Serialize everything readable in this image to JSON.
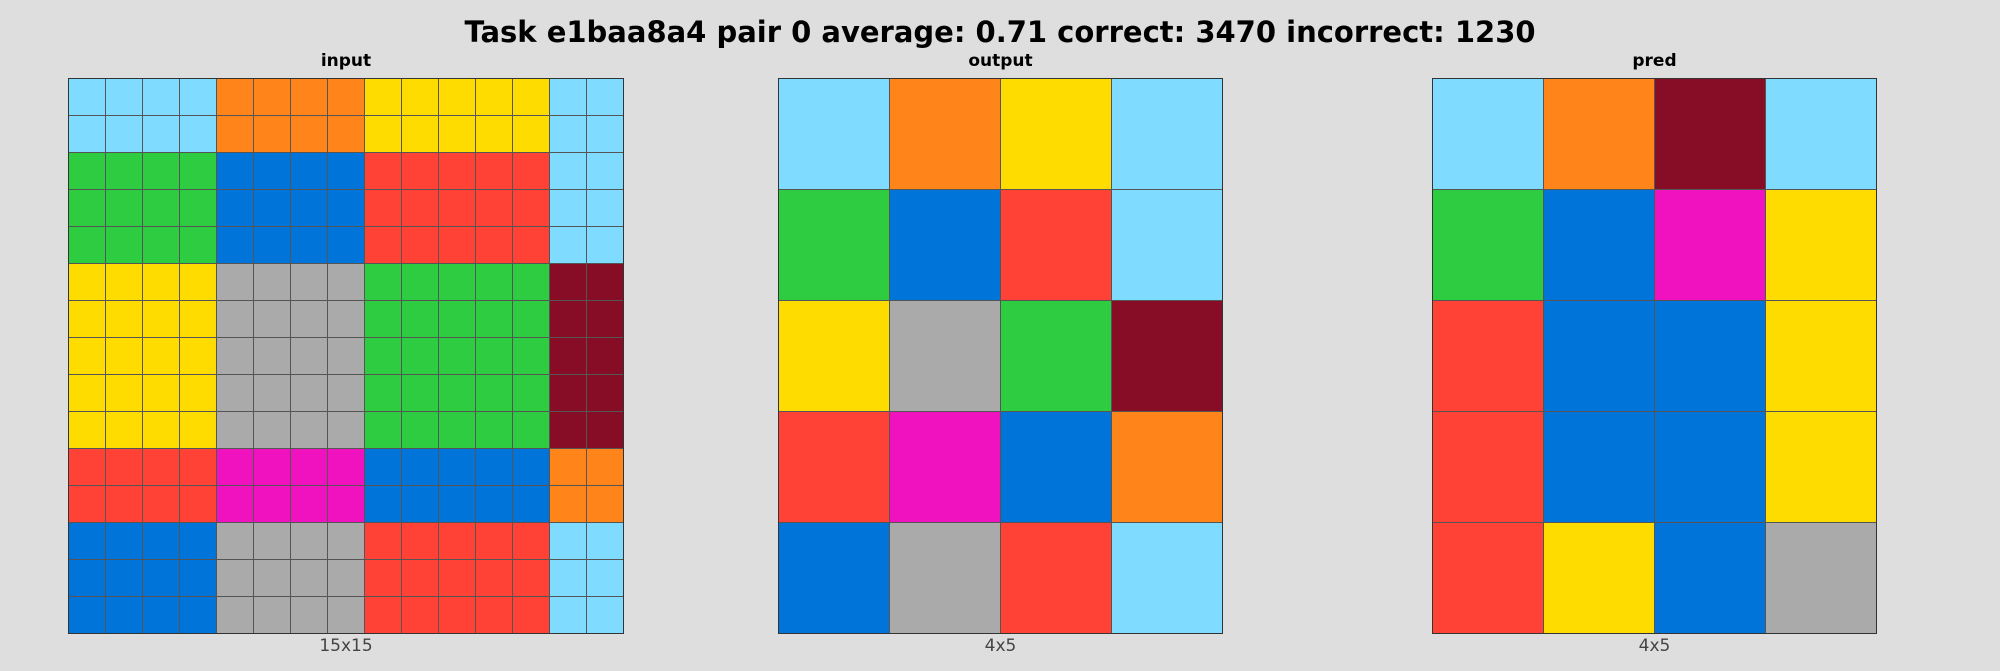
{
  "title": "Task e1baa8a4 pair 0 average: 0.71 correct: 3470 incorrect: 1230",
  "palette": {
    "1": "#0074D9",
    "2": "#FF4136",
    "3": "#2ECC40",
    "4": "#FFDC00",
    "5": "#AAAAAA",
    "6": "#F012BE",
    "7": "#FF851B",
    "8": "#7FDBFF",
    "9": "#870C25"
  },
  "panels": [
    {
      "label": "input",
      "dims": "15x15",
      "rows": [
        [
          8,
          8,
          8,
          8,
          7,
          7,
          7,
          7,
          4,
          4,
          4,
          4,
          4,
          8,
          8
        ],
        [
          8,
          8,
          8,
          8,
          7,
          7,
          7,
          7,
          4,
          4,
          4,
          4,
          4,
          8,
          8
        ],
        [
          3,
          3,
          3,
          3,
          1,
          1,
          1,
          1,
          2,
          2,
          2,
          2,
          2,
          8,
          8
        ],
        [
          3,
          3,
          3,
          3,
          1,
          1,
          1,
          1,
          2,
          2,
          2,
          2,
          2,
          8,
          8
        ],
        [
          3,
          3,
          3,
          3,
          1,
          1,
          1,
          1,
          2,
          2,
          2,
          2,
          2,
          8,
          8
        ],
        [
          4,
          4,
          4,
          4,
          5,
          5,
          5,
          5,
          3,
          3,
          3,
          3,
          3,
          9,
          9
        ],
        [
          4,
          4,
          4,
          4,
          5,
          5,
          5,
          5,
          3,
          3,
          3,
          3,
          3,
          9,
          9
        ],
        [
          4,
          4,
          4,
          4,
          5,
          5,
          5,
          5,
          3,
          3,
          3,
          3,
          3,
          9,
          9
        ],
        [
          4,
          4,
          4,
          4,
          5,
          5,
          5,
          5,
          3,
          3,
          3,
          3,
          3,
          9,
          9
        ],
        [
          4,
          4,
          4,
          4,
          5,
          5,
          5,
          5,
          3,
          3,
          3,
          3,
          3,
          9,
          9
        ],
        [
          2,
          2,
          2,
          2,
          6,
          6,
          6,
          6,
          1,
          1,
          1,
          1,
          1,
          7,
          7
        ],
        [
          2,
          2,
          2,
          2,
          6,
          6,
          6,
          6,
          1,
          1,
          1,
          1,
          1,
          7,
          7
        ],
        [
          1,
          1,
          1,
          1,
          5,
          5,
          5,
          5,
          2,
          2,
          2,
          2,
          2,
          8,
          8
        ],
        [
          1,
          1,
          1,
          1,
          5,
          5,
          5,
          5,
          2,
          2,
          2,
          2,
          2,
          8,
          8
        ],
        [
          1,
          1,
          1,
          1,
          5,
          5,
          5,
          5,
          2,
          2,
          2,
          2,
          2,
          8,
          8
        ]
      ]
    },
    {
      "label": "output",
      "dims": "4x5",
      "rows": [
        [
          8,
          7,
          4,
          8
        ],
        [
          3,
          1,
          2,
          8
        ],
        [
          4,
          5,
          3,
          9
        ],
        [
          2,
          6,
          1,
          7
        ],
        [
          1,
          5,
          2,
          8
        ]
      ]
    },
    {
      "label": "pred",
      "dims": "4x5",
      "rows": [
        [
          8,
          7,
          9,
          8
        ],
        [
          3,
          1,
          6,
          4
        ],
        [
          2,
          1,
          1,
          4
        ],
        [
          2,
          1,
          1,
          4
        ],
        [
          2,
          4,
          1,
          5
        ]
      ]
    }
  ]
}
